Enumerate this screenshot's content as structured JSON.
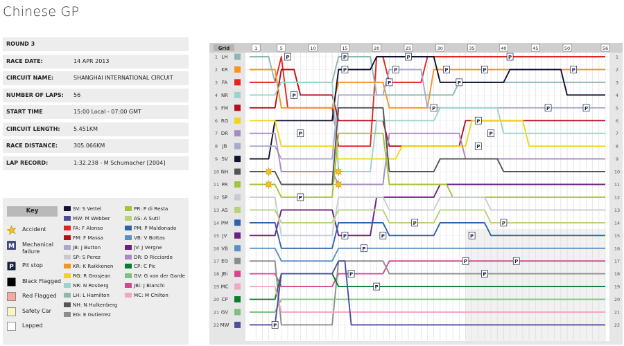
{
  "title": "Chinese GP",
  "info": [
    {
      "label": "ROUND 3",
      "value": ""
    },
    {
      "label": "RACE DATE:",
      "value": "14 APR 2013"
    },
    {
      "label": "CIRCUIT NAME:",
      "value": "SHANGHAI INTERNATIONAL CIRCUIT"
    },
    {
      "label": "NUMBER OF LAPS:",
      "value": "56"
    },
    {
      "label": "START TIME",
      "value": "15:00 Local - 07:00 GMT"
    },
    {
      "label": "CIRCUIT LENGTH:",
      "value": "5.451KM"
    },
    {
      "label": "RACE DISTANCE:",
      "value": "305.066KM"
    },
    {
      "label": "LAP RECORD:",
      "value": "1:32.238 - M Schumacher [2004]"
    }
  ],
  "key": {
    "title": "Key",
    "items": [
      {
        "label": "Accident",
        "icon": "accident-icon"
      },
      {
        "label": "Mechanical failure",
        "icon": "mechanical-failure-icon"
      },
      {
        "label": "Pit stop",
        "icon": "pit-stop-icon"
      },
      {
        "label": "Black Flagged",
        "icon": "black-flag-icon"
      },
      {
        "label": "Red Flagged",
        "icon": "red-flag-icon"
      },
      {
        "label": "Safety Car",
        "icon": "safety-car-icon"
      },
      {
        "label": "Lapped",
        "icon": "lapped-icon"
      }
    ],
    "drivers": [
      {
        "code": "SV",
        "label": "SV: S Vettel",
        "color": "#111133"
      },
      {
        "code": "MW",
        "label": "MW: M Webber",
        "color": "#4a4f9e"
      },
      {
        "code": "FA",
        "label": "FA: F Alonso",
        "color": "#e0261f"
      },
      {
        "code": "FM",
        "label": "FM: F Massa",
        "color": "#b3101a"
      },
      {
        "code": "JB",
        "label": "JB: J Button",
        "color": "#a9a9cc"
      },
      {
        "code": "SP",
        "label": "SP: S Perez",
        "color": "#c8ccd2"
      },
      {
        "code": "KR",
        "label": "KR: K Raikkonen",
        "color": "#f7941d"
      },
      {
        "code": "RG",
        "label": "RG: R Grosjean",
        "color": "#f2d51a"
      },
      {
        "code": "NR",
        "label": "NR: N Rosberg",
        "color": "#9cd3cd"
      },
      {
        "code": "LH",
        "label": "LH: L Hamilton",
        "color": "#8fb7b2"
      },
      {
        "code": "NH",
        "label": "NH: N Hulkenberg",
        "color": "#555555"
      },
      {
        "code": "EG",
        "label": "EG: E Gutierrez",
        "color": "#8c8c8c"
      },
      {
        "code": "PR",
        "label": "PR: P di Resta",
        "color": "#a4c23a"
      },
      {
        "code": "AS",
        "label": "AS: A Sutil",
        "color": "#b7d27a"
      },
      {
        "code": "PM",
        "label": "PM: P Maldonado",
        "color": "#2d64a8"
      },
      {
        "code": "VB",
        "label": "VB: V Bottas",
        "color": "#5b8fc4"
      },
      {
        "code": "JV",
        "label": "JV: J Vergne",
        "color": "#6b1f80"
      },
      {
        "code": "DR",
        "label": "DR: D Ricciardo",
        "color": "#a98bc2"
      },
      {
        "code": "CP",
        "label": "CP: C Pic",
        "color": "#0c7a2f"
      },
      {
        "code": "GV",
        "label": "GV: G van der Garde",
        "color": "#7fbf7f"
      },
      {
        "code": "JBi",
        "label": "JBi: J Bianchi",
        "color": "#d6488d"
      },
      {
        "code": "MC",
        "label": "MC: M Chilton",
        "color": "#f2a7c6"
      }
    ]
  },
  "chart_data": {
    "type": "line",
    "title": "",
    "x_header": "Grid",
    "x_ticks": [
      "1",
      "5",
      "10",
      "15",
      "20",
      "25",
      "30",
      "35",
      "40",
      "45",
      "50",
      "56"
    ],
    "laps": 56,
    "grid_order": [
      "LH",
      "KR",
      "FA",
      "NR",
      "FM",
      "RG",
      "DR",
      "JB",
      "SV",
      "NH",
      "PR",
      "SP",
      "AS",
      "PM",
      "JV",
      "VB",
      "EG",
      "JBi",
      "MC",
      "CP",
      "GV",
      "MW"
    ],
    "final_order": [
      "FA",
      "KR",
      "LH",
      "SV",
      "JB",
      "FM",
      "NR",
      "RG",
      "DR",
      "NH",
      "JV",
      "PR",
      "SP",
      "AS",
      "PM",
      "VB",
      "JBi",
      "EG",
      "CP",
      "GV",
      "MC",
      "MW"
    ],
    "y_positions": [
      "1",
      "2",
      "3",
      "4",
      "5",
      "6",
      "7",
      "8",
      "9",
      "10",
      "11",
      "12",
      "13",
      "14",
      "15",
      "16",
      "17",
      "18",
      "19",
      "20",
      "21",
      "22"
    ],
    "series": [
      {
        "name": "FA",
        "values": [
          {
            "lap": 0,
            "pos": 3
          },
          {
            "lap": 1,
            "pos": 3
          },
          {
            "lap": 5,
            "pos": 1
          },
          {
            "lap": 6,
            "pos": 5
          },
          {
            "lap": 14,
            "pos": 8
          },
          {
            "lap": 20,
            "pos": 1
          },
          {
            "lap": 22,
            "pos": 3
          },
          {
            "lap": 28,
            "pos": 1
          },
          {
            "lap": 56,
            "pos": 1
          }
        ]
      },
      {
        "name": "KR",
        "values": [
          {
            "lap": 0,
            "pos": 2
          },
          {
            "lap": 1,
            "pos": 2
          },
          {
            "lap": 5,
            "pos": 5
          },
          {
            "lap": 14,
            "pos": 3
          },
          {
            "lap": 22,
            "pos": 5
          },
          {
            "lap": 29,
            "pos": 2
          },
          {
            "lap": 56,
            "pos": 2
          }
        ]
      },
      {
        "name": "LH",
        "values": [
          {
            "lap": 0,
            "pos": 1
          },
          {
            "lap": 1,
            "pos": 1
          },
          {
            "lap": 4,
            "pos": 3
          },
          {
            "lap": 14,
            "pos": 1
          },
          {
            "lap": 20,
            "pos": 4
          },
          {
            "lap": 33,
            "pos": 3
          },
          {
            "lap": 56,
            "pos": 3
          }
        ]
      },
      {
        "name": "SV",
        "values": [
          {
            "lap": 0,
            "pos": 9
          },
          {
            "lap": 1,
            "pos": 9
          },
          {
            "lap": 4,
            "pos": 6
          },
          {
            "lap": 14,
            "pos": 2
          },
          {
            "lap": 20,
            "pos": 1
          },
          {
            "lap": 27,
            "pos": 1
          },
          {
            "lap": 30,
            "pos": 3
          },
          {
            "lap": 41,
            "pos": 2
          },
          {
            "lap": 50,
            "pos": 4
          },
          {
            "lap": 56,
            "pos": 4
          }
        ]
      },
      {
        "name": "JB",
        "values": [
          {
            "lap": 0,
            "pos": 8
          },
          {
            "lap": 1,
            "pos": 8
          },
          {
            "lap": 5,
            "pos": 9
          },
          {
            "lap": 14,
            "pos": 4
          },
          {
            "lap": 22,
            "pos": 2
          },
          {
            "lap": 28,
            "pos": 5
          },
          {
            "lap": 56,
            "pos": 5
          }
        ]
      },
      {
        "name": "FM",
        "values": [
          {
            "lap": 0,
            "pos": 5
          },
          {
            "lap": 1,
            "pos": 5
          },
          {
            "lap": 5,
            "pos": 2
          },
          {
            "lap": 8,
            "pos": 4
          },
          {
            "lap": 14,
            "pos": 6
          },
          {
            "lap": 22,
            "pos": 8
          },
          {
            "lap": 34,
            "pos": 6
          },
          {
            "lap": 56,
            "pos": 6
          }
        ]
      },
      {
        "name": "NR",
        "values": [
          {
            "lap": 0,
            "pos": 4
          },
          {
            "lap": 1,
            "pos": 4
          },
          {
            "lap": 5,
            "pos": 3
          },
          {
            "lap": 14,
            "pos": 10
          },
          {
            "lap": 20,
            "pos": 6
          },
          {
            "lap": 30,
            "pos": 5
          },
          {
            "lap": 40,
            "pos": 7
          },
          {
            "lap": 56,
            "pos": 7
          }
        ]
      },
      {
        "name": "RG",
        "values": [
          {
            "lap": 0,
            "pos": 6
          },
          {
            "lap": 1,
            "pos": 6
          },
          {
            "lap": 5,
            "pos": 8
          },
          {
            "lap": 14,
            "pos": 9
          },
          {
            "lap": 24,
            "pos": 8
          },
          {
            "lap": 35,
            "pos": 6
          },
          {
            "lap": 44,
            "pos": 8
          },
          {
            "lap": 56,
            "pos": 8
          }
        ]
      },
      {
        "name": "DR",
        "values": [
          {
            "lap": 0,
            "pos": 7
          },
          {
            "lap": 1,
            "pos": 7
          },
          {
            "lap": 5,
            "pos": 10
          },
          {
            "lap": 14,
            "pos": 11
          },
          {
            "lap": 22,
            "pos": 7
          },
          {
            "lap": 34,
            "pos": 9
          },
          {
            "lap": 56,
            "pos": 9
          }
        ]
      },
      {
        "name": "NH",
        "values": [
          {
            "lap": 0,
            "pos": 10
          },
          {
            "lap": 1,
            "pos": 10
          },
          {
            "lap": 5,
            "pos": 11
          },
          {
            "lap": 14,
            "pos": 5
          },
          {
            "lap": 22,
            "pos": 10
          },
          {
            "lap": 30,
            "pos": 9
          },
          {
            "lap": 40,
            "pos": 10
          },
          {
            "lap": 56,
            "pos": 10
          }
        ]
      },
      {
        "name": "JV",
        "values": [
          {
            "lap": 0,
            "pos": 15
          },
          {
            "lap": 1,
            "pos": 15
          },
          {
            "lap": 5,
            "pos": 13
          },
          {
            "lap": 14,
            "pos": 15
          },
          {
            "lap": 20,
            "pos": 12
          },
          {
            "lap": 30,
            "pos": 11
          },
          {
            "lap": 56,
            "pos": 11
          }
        ]
      },
      {
        "name": "PR",
        "values": [
          {
            "lap": 0,
            "pos": 11
          },
          {
            "lap": 1,
            "pos": 11
          },
          {
            "lap": 5,
            "pos": 12
          },
          {
            "lap": 14,
            "pos": 7
          },
          {
            "lap": 22,
            "pos": 11
          },
          {
            "lap": 32,
            "pos": 12
          },
          {
            "lap": 56,
            "pos": 12
          }
        ]
      },
      {
        "name": "SP",
        "values": [
          {
            "lap": 0,
            "pos": 12
          },
          {
            "lap": 1,
            "pos": 12
          },
          {
            "lap": 5,
            "pos": 15
          },
          {
            "lap": 14,
            "pos": 12
          },
          {
            "lap": 22,
            "pos": 13
          },
          {
            "lap": 30,
            "pos": 12
          },
          {
            "lap": 38,
            "pos": 13
          },
          {
            "lap": 56,
            "pos": 13
          }
        ]
      },
      {
        "name": "AS",
        "values": [
          {
            "lap": 0,
            "pos": 13
          },
          {
            "lap": 1,
            "pos": 13
          },
          {
            "lap": 5,
            "pos": 14
          },
          {
            "lap": 14,
            "pos": 13
          },
          {
            "lap": 22,
            "pos": 14
          },
          {
            "lap": 30,
            "pos": 13
          },
          {
            "lap": 38,
            "pos": 14
          },
          {
            "lap": 56,
            "pos": 14
          }
        ]
      },
      {
        "name": "PM",
        "values": [
          {
            "lap": 0,
            "pos": 14
          },
          {
            "lap": 1,
            "pos": 14
          },
          {
            "lap": 5,
            "pos": 16
          },
          {
            "lap": 14,
            "pos": 14
          },
          {
            "lap": 22,
            "pos": 15
          },
          {
            "lap": 30,
            "pos": 14
          },
          {
            "lap": 38,
            "pos": 15
          },
          {
            "lap": 56,
            "pos": 15
          }
        ]
      },
      {
        "name": "VB",
        "values": [
          {
            "lap": 0,
            "pos": 16
          },
          {
            "lap": 1,
            "pos": 16
          },
          {
            "lap": 5,
            "pos": 17
          },
          {
            "lap": 14,
            "pos": 16
          },
          {
            "lap": 22,
            "pos": 16
          },
          {
            "lap": 56,
            "pos": 16
          }
        ]
      },
      {
        "name": "JBi",
        "values": [
          {
            "lap": 0,
            "pos": 18
          },
          {
            "lap": 1,
            "pos": 18
          },
          {
            "lap": 5,
            "pos": 19
          },
          {
            "lap": 14,
            "pos": 18
          },
          {
            "lap": 22,
            "pos": 17
          },
          {
            "lap": 56,
            "pos": 17
          }
        ]
      },
      {
        "name": "EG",
        "values": [
          {
            "lap": 0,
            "pos": 17
          },
          {
            "lap": 1,
            "pos": 17
          },
          {
            "lap": 5,
            "pos": 22
          },
          {
            "lap": 14,
            "pos": 17
          },
          {
            "lap": 22,
            "pos": 18
          },
          {
            "lap": 56,
            "pos": 18
          }
        ]
      },
      {
        "name": "CP",
        "values": [
          {
            "lap": 0,
            "pos": 20
          },
          {
            "lap": 1,
            "pos": 20
          },
          {
            "lap": 5,
            "pos": 18
          },
          {
            "lap": 14,
            "pos": 19
          },
          {
            "lap": 22,
            "pos": 19
          },
          {
            "lap": 56,
            "pos": 19
          }
        ]
      },
      {
        "name": "GV",
        "values": [
          {
            "lap": 0,
            "pos": 21
          },
          {
            "lap": 1,
            "pos": 21
          },
          {
            "lap": 5,
            "pos": 20
          },
          {
            "lap": 14,
            "pos": 20
          },
          {
            "lap": 22,
            "pos": 20
          },
          {
            "lap": 56,
            "pos": 20
          }
        ]
      },
      {
        "name": "MC",
        "values": [
          {
            "lap": 0,
            "pos": 19
          },
          {
            "lap": 1,
            "pos": 19
          },
          {
            "lap": 5,
            "pos": 21
          },
          {
            "lap": 14,
            "pos": 21
          },
          {
            "lap": 22,
            "pos": 21
          },
          {
            "lap": 56,
            "pos": 21
          }
        ]
      },
      {
        "name": "MW",
        "values": [
          {
            "lap": 0,
            "pos": 22
          },
          {
            "lap": 1,
            "pos": 22
          },
          {
            "lap": 5,
            "pos": 18
          },
          {
            "lap": 14,
            "pos": 17
          },
          {
            "lap": 16,
            "pos": 22
          },
          {
            "lap": 56,
            "pos": 22
          }
        ]
      }
    ],
    "pit_marker_label": "P",
    "pit_stops": [
      {
        "lap": 4,
        "pos": 22
      },
      {
        "lap": 6,
        "pos": 1
      },
      {
        "lap": 7,
        "pos": 4
      },
      {
        "lap": 8,
        "pos": 7
      },
      {
        "lap": 8,
        "pos": 12
      },
      {
        "lap": 15,
        "pos": 2
      },
      {
        "lap": 15,
        "pos": 1
      },
      {
        "lap": 15,
        "pos": 15
      },
      {
        "lap": 16,
        "pos": 18
      },
      {
        "lap": 18,
        "pos": 16
      },
      {
        "lap": 20,
        "pos": 19
      },
      {
        "lap": 21,
        "pos": 15
      },
      {
        "lap": 22,
        "pos": 3
      },
      {
        "lap": 23,
        "pos": 2
      },
      {
        "lap": 25,
        "pos": 1
      },
      {
        "lap": 26,
        "pos": 14
      },
      {
        "lap": 29,
        "pos": 5
      },
      {
        "lap": 31,
        "pos": 2
      },
      {
        "lap": 33,
        "pos": 3
      },
      {
        "lap": 34,
        "pos": 17
      },
      {
        "lap": 35,
        "pos": 15
      },
      {
        "lap": 36,
        "pos": 6
      },
      {
        "lap": 36,
        "pos": 8
      },
      {
        "lap": 37,
        "pos": 2
      },
      {
        "lap": 38,
        "pos": 7
      },
      {
        "lap": 40,
        "pos": 14
      },
      {
        "lap": 41,
        "pos": 1
      },
      {
        "lap": 42,
        "pos": 17
      },
      {
        "lap": 47,
        "pos": 5
      },
      {
        "lap": 51,
        "pos": 2
      },
      {
        "lap": 53,
        "pos": 5
      },
      {
        "lap": 37,
        "pos": 18
      }
    ],
    "accidents": [
      {
        "lap": 3,
        "pos": 10
      },
      {
        "lap": 3,
        "pos": 11
      },
      {
        "lap": 14,
        "pos": 10
      },
      {
        "lap": 14,
        "pos": 11
      }
    ],
    "lapped_from_lap": 34,
    "lapped_from_pos": 15
  }
}
